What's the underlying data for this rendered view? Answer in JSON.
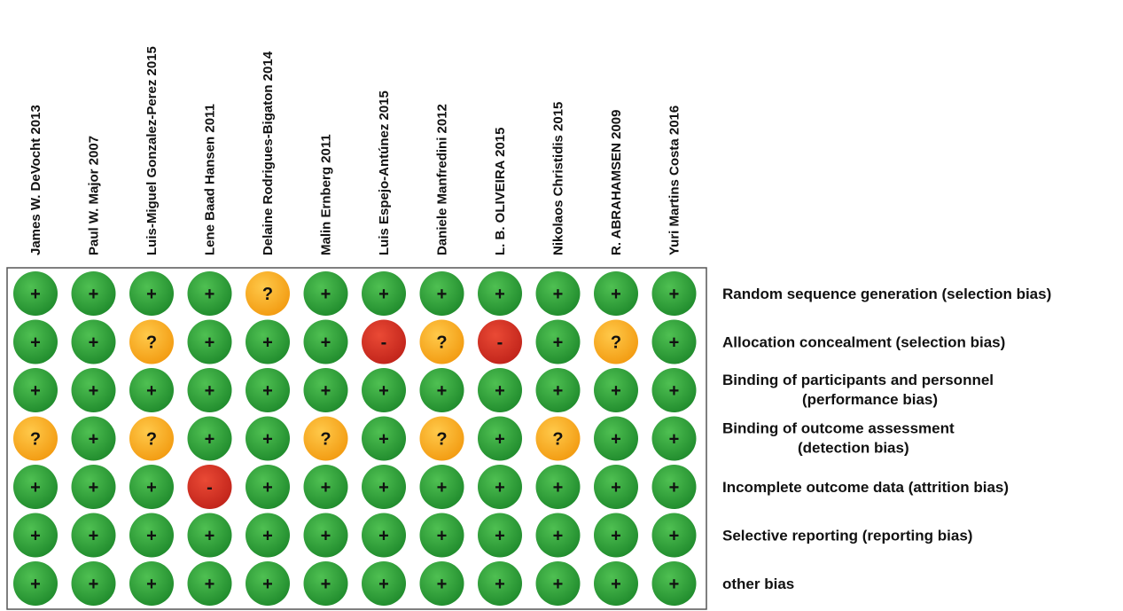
{
  "chart_data": {
    "type": "table",
    "studies": [
      "James W. DeVocht 2013",
      "Paul W. Major 2007",
      "Luis-Miguel Gonzalez-Perez 2015",
      "Lene Baad Hansen 2011",
      "Delaine Rodrigues-Bigaton 2014",
      "Malin Ernberg 2011",
      "Luis Espejo-Antúnez 2015",
      "Daniele Manfredini 2012",
      "L. B. OLIVEIRA 2015",
      "Nikolaos Christidis 2015",
      "R. ABRAHAMSEN 2009",
      "Yuri Martins Costa 2016"
    ],
    "domains": [
      {
        "lines": [
          "Random sequence generation (selection bias)"
        ]
      },
      {
        "lines": [
          "Allocation concealment (selection bias)"
        ]
      },
      {
        "lines": [
          "Binding of  participants and personnel",
          "(performance bias)"
        ]
      },
      {
        "lines": [
          "Binding of  outcome assessment",
          "(detection bias)"
        ]
      },
      {
        "lines": [
          "Incomplete outcome data (attrition bias)"
        ]
      },
      {
        "lines": [
          "Selective reporting (reporting bias)"
        ]
      },
      {
        "lines": [
          "other  bias"
        ]
      }
    ],
    "judgements": [
      [
        "+",
        "+",
        "+",
        "+",
        "?",
        "+",
        "+",
        "+",
        "+",
        "+",
        "+",
        "+"
      ],
      [
        "+",
        "+",
        "?",
        "+",
        "+",
        "+",
        "-",
        "?",
        "-",
        "+",
        "?",
        "+"
      ],
      [
        "+",
        "+",
        "+",
        "+",
        "+",
        "+",
        "+",
        "+",
        "+",
        "+",
        "+",
        "+"
      ],
      [
        "?",
        "+",
        "?",
        "+",
        "+",
        "?",
        "+",
        "?",
        "+",
        "?",
        "+",
        "+"
      ],
      [
        "+",
        "+",
        "+",
        "-",
        "+",
        "+",
        "+",
        "+",
        "+",
        "+",
        "+",
        "+"
      ],
      [
        "+",
        "+",
        "+",
        "+",
        "+",
        "+",
        "+",
        "+",
        "+",
        "+",
        "+",
        "+"
      ],
      [
        "+",
        "+",
        "+",
        "+",
        "+",
        "+",
        "+",
        "+",
        "+",
        "+",
        "+",
        "+"
      ]
    ],
    "colors": {
      "+": "#2e9e3a",
      "?": "#f5ab1f",
      "-": "#d6301f",
      "border": "#555555"
    }
  }
}
